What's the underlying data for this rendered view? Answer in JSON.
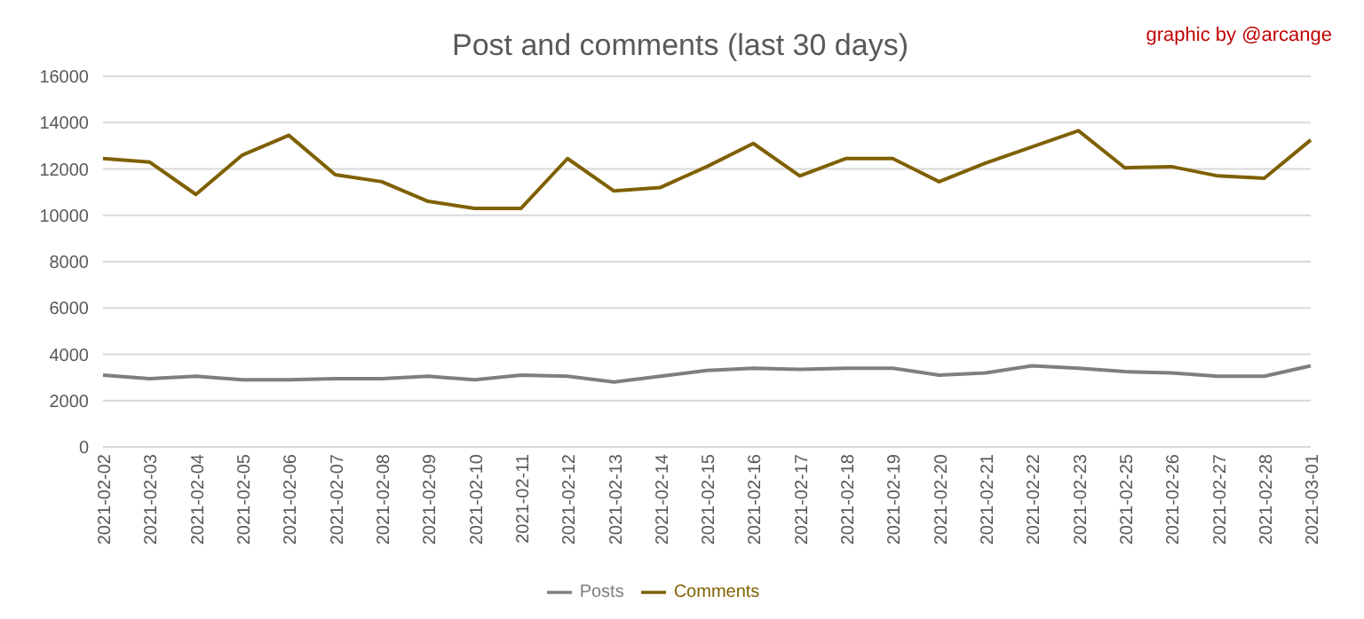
{
  "chart_data": {
    "type": "line",
    "title": "Post and comments (last 30 days)",
    "annotations": [
      "graphic by @arcange"
    ],
    "categories": [
      "2021-02-02",
      "2021-02-03",
      "2021-02-04",
      "2021-02-05",
      "2021-02-06",
      "2021-02-07",
      "2021-02-08",
      "2021-02-09",
      "2021-02-10",
      "2021-02-11",
      "2021-02-12",
      "2021-02-13",
      "2021-02-14",
      "2021-02-15",
      "2021-02-16",
      "2021-02-17",
      "2021-02-18",
      "2021-02-19",
      "2021-02-20",
      "2021-02-21",
      "2021-02-22",
      "2021-02-23",
      "2021-02-25",
      "2021-02-26",
      "2021-02-27",
      "2021-02-28",
      "2021-03-01"
    ],
    "series": [
      {
        "name": "Posts",
        "color": "#7f7f7f",
        "values": [
          3100,
          2950,
          3050,
          2900,
          2900,
          2950,
          2950,
          3050,
          2900,
          3100,
          3050,
          2800,
          3050,
          3300,
          3400,
          3350,
          3400,
          3400,
          3100,
          3200,
          3500,
          3400,
          3250,
          3200,
          3050,
          3050,
          3500
        ]
      },
      {
        "name": "Comments",
        "color": "#7f6000",
        "values": [
          12450,
          12300,
          10900,
          12600,
          13450,
          11750,
          11450,
          10600,
          10300,
          10300,
          12450,
          11050,
          11200,
          12100,
          13100,
          11700,
          12450,
          12450,
          11450,
          12250,
          12950,
          13650,
          12050,
          12100,
          11700,
          11600,
          13250
        ]
      }
    ],
    "ylim": [
      0,
      16000
    ],
    "yticks": [
      0,
      2000,
      4000,
      6000,
      8000,
      10000,
      12000,
      14000,
      16000
    ],
    "grid": "y",
    "legend": "bottom",
    "marker": "none",
    "line_style": "solid"
  }
}
